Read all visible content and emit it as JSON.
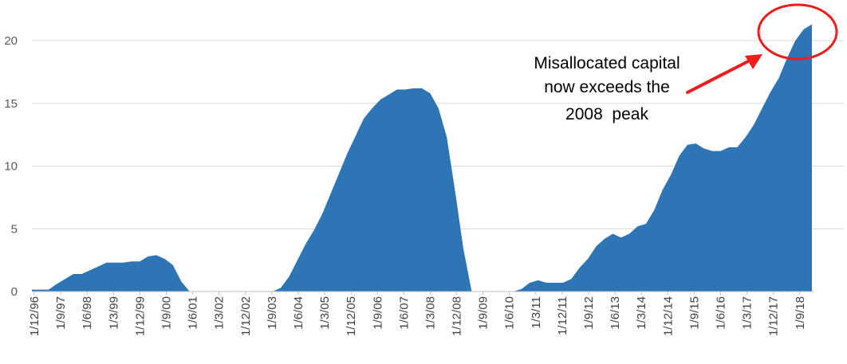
{
  "chart_data": {
    "type": "area",
    "title": "",
    "xlabel": "",
    "ylabel": "",
    "ylim": [
      0,
      22
    ],
    "yticks": [
      0,
      5,
      10,
      15,
      20
    ],
    "grid": true,
    "legend": "none",
    "color": "#2e75b6",
    "tick_labels": [
      "1/12/96",
      "1/9/97",
      "1/6/98",
      "1/3/99",
      "1/12/99",
      "1/9/00",
      "1/6/01",
      "1/3/02",
      "1/12/02",
      "1/9/03",
      "1/6/04",
      "1/3/05",
      "1/12/05",
      "1/9/06",
      "1/6/07",
      "1/3/08",
      "1/12/08",
      "1/9/09",
      "1/6/10",
      "1/3/11",
      "1/12/11",
      "1/9/12",
      "1/6/13",
      "1/3/14",
      "1/12/14",
      "1/9/15",
      "1/6/16",
      "1/3/17",
      "1/12/17",
      "1/9/18"
    ],
    "series": [
      {
        "values": [
          0.15,
          0.15,
          0.15,
          0.6,
          1.0,
          1.4,
          1.4,
          1.7,
          2.0,
          2.3,
          2.3,
          2.3,
          2.4,
          2.4,
          2.8,
          2.9,
          2.6,
          2.1,
          0.8,
          0,
          0,
          0,
          0,
          0,
          0,
          0,
          0,
          0,
          0,
          0,
          0.3,
          1.2,
          2.5,
          3.8,
          4.9,
          6.2,
          7.8,
          9.4,
          11.0,
          12.4,
          13.8,
          14.6,
          15.3,
          15.7,
          16.1,
          16.1,
          16.2,
          16.2,
          15.8,
          14.6,
          12.3,
          8.0,
          3.4,
          0,
          0,
          0,
          0,
          0,
          0,
          0.2,
          0.7,
          0.9,
          0.7,
          0.7,
          0.7,
          1.0,
          1.9,
          2.6,
          3.6,
          4.2,
          4.6,
          4.3,
          4.6,
          5.2,
          5.4,
          6.5,
          8.1,
          9.3,
          10.8,
          11.7,
          11.8,
          11.4,
          11.2,
          11.2,
          11.5,
          11.5,
          12.3,
          13.3,
          14.6,
          15.9,
          17.0,
          18.6,
          20.0,
          20.9,
          21.3
        ]
      }
    ],
    "annotation": {
      "lines": [
        "Misallocated capital",
        "now exceeds the",
        "2008  peak"
      ],
      "arrow_color": "#ee1c1c",
      "circle_color": "#ee1c1c"
    }
  }
}
